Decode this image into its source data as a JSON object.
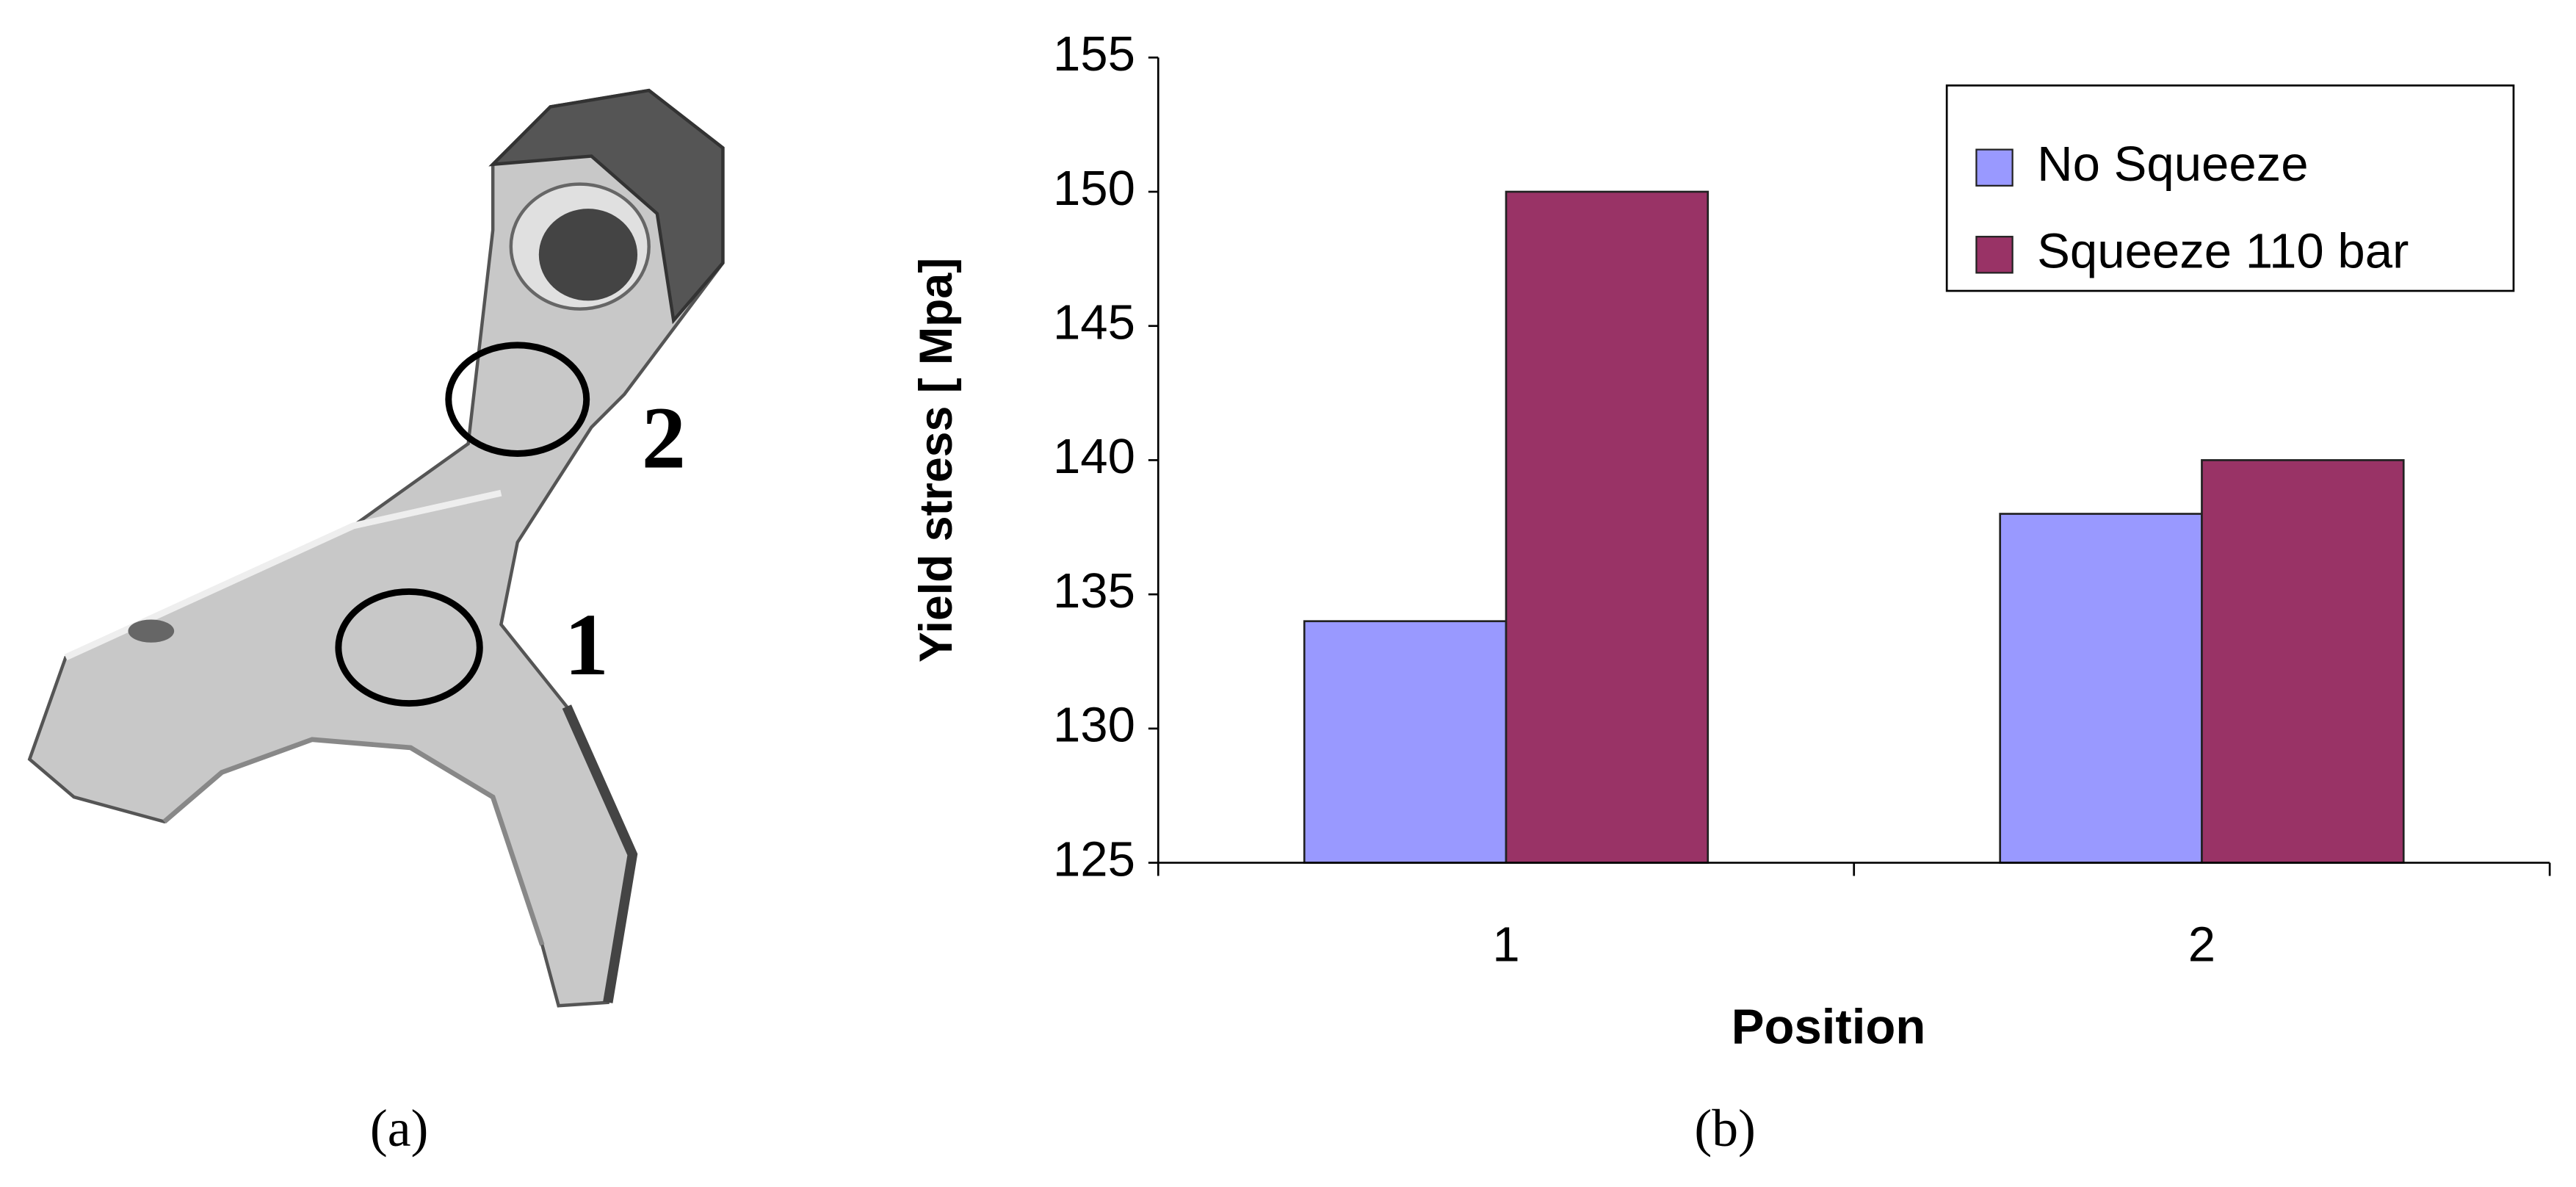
{
  "panel_a": {
    "label": "(a)",
    "markers": [
      "1",
      "2"
    ]
  },
  "panel_b": {
    "label": "(b)"
  },
  "chart_data": {
    "type": "bar",
    "categories": [
      "1",
      "2"
    ],
    "series": [
      {
        "name": "No Squeeze",
        "color": "#9999ff",
        "values": [
          134,
          138
        ]
      },
      {
        "name": "Squeeze 110 bar",
        "color": "#993366",
        "values": [
          150,
          140
        ]
      }
    ],
    "x_label": "Position",
    "y_label": "Yield stress [ Mpa]",
    "ylim": [
      125,
      155
    ],
    "yticks": [
      125,
      130,
      135,
      140,
      145,
      150,
      155
    ],
    "grid": false,
    "legend": "upper right"
  }
}
